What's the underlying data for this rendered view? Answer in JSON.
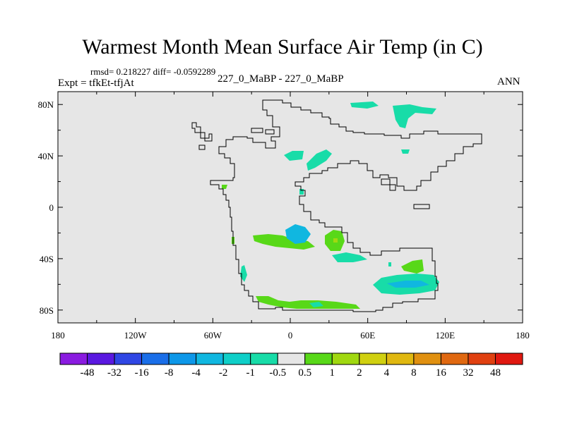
{
  "header": {
    "title": "Warmest Month Mean Surface Air Temp (in C)",
    "stats": "rmsd= 0.218227 diff= -0.0592289",
    "subtitle": "Expt = tfkEt-tfjAt",
    "center_label": "227_0_MaBP - 227_0_MaBP",
    "season": "ANN"
  },
  "axes": {
    "x_ticks": [
      "180",
      "120W",
      "60W",
      "0",
      "60E",
      "120E",
      "180"
    ],
    "x_values": [
      -180,
      -120,
      -60,
      0,
      60,
      120,
      180
    ],
    "y_ticks": [
      "80N",
      "40N",
      "0",
      "40S",
      "80S"
    ],
    "y_values": [
      80,
      40,
      0,
      -40,
      -80
    ],
    "xlim": [
      -180,
      180
    ],
    "ylim": [
      -90,
      90
    ]
  },
  "colorbar": {
    "colors": [
      "#8a1be0",
      "#5a18e0",
      "#2f46e4",
      "#1a6ee8",
      "#0d97e8",
      "#10b7e0",
      "#0fcfc8",
      "#18dca8",
      "#e6e6e6",
      "#58d818",
      "#a0d810",
      "#d0d010",
      "#e0b810",
      "#e09010",
      "#e06810",
      "#e04010",
      "#e01810"
    ],
    "labels": [
      "-48",
      "-32",
      "-16",
      "-8",
      "-4",
      "-2",
      "-1",
      "-0.5",
      "0.5",
      "1",
      "2",
      "4",
      "8",
      "16",
      "32",
      "48"
    ]
  },
  "chart_data": {
    "type": "heatmap",
    "background_value_range": [
      -0.5,
      0.5
    ],
    "regions": [
      {
        "lon": 60,
        "lat": 75,
        "band": "-1"
      },
      {
        "lon": 95,
        "lat": 78,
        "band": "-1"
      },
      {
        "lon": 5,
        "lat": 42,
        "band": "-1"
      },
      {
        "lon": 24,
        "lat": 38,
        "band": "-1"
      },
      {
        "lon": 3,
        "lat": -20,
        "band": "-2"
      },
      {
        "lon": -10,
        "lat": -28,
        "band": "1"
      },
      {
        "lon": 37,
        "lat": -26,
        "band": "2"
      },
      {
        "lon": 45,
        "lat": -38,
        "band": "-1"
      },
      {
        "lon": -37,
        "lat": -50,
        "band": "-1"
      },
      {
        "lon": 95,
        "lat": -48,
        "band": "1"
      },
      {
        "lon": 90,
        "lat": -60,
        "band": "-1"
      },
      {
        "lon": 12,
        "lat": -75,
        "band": "1"
      }
    ]
  }
}
